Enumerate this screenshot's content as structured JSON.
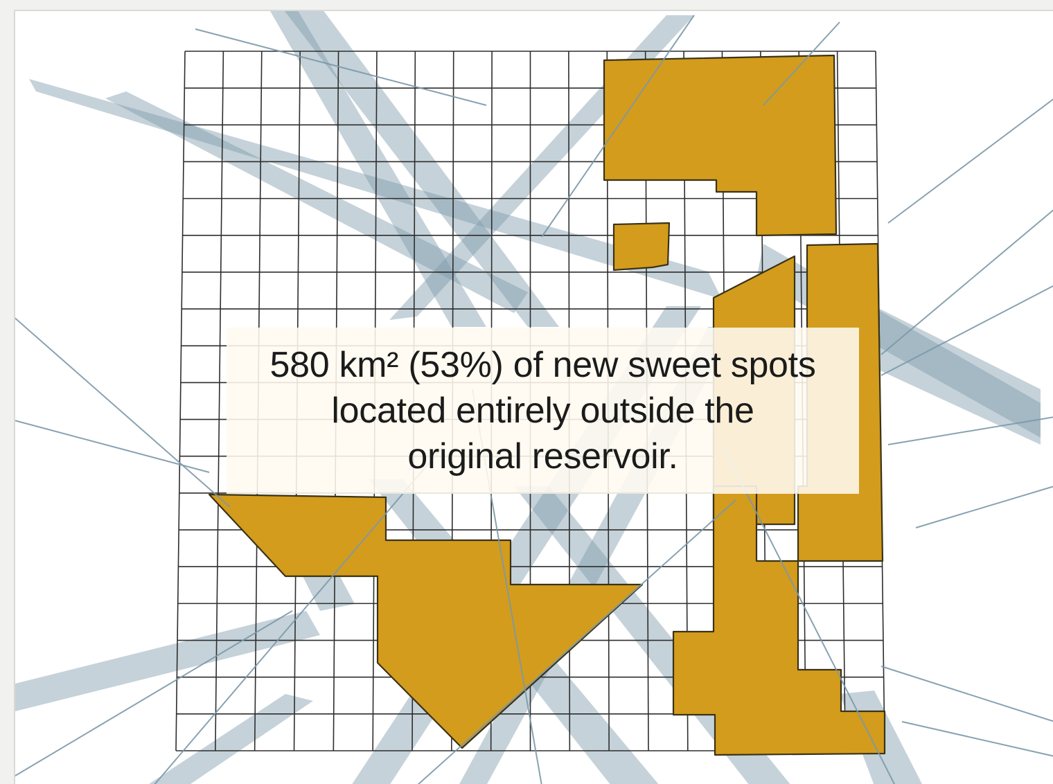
{
  "callout": {
    "line1": "580 km² (53%) of new sweet spots",
    "line2": "located entirely outside the",
    "line3": "original reservoir."
  },
  "colors": {
    "sweet_spot_fill": "#d39c1c",
    "sweet_spot_stroke": "#3a3218",
    "fault_band": "#7f9bab",
    "fault_line": "#7b98a8",
    "grid_line": "#2d2d2d",
    "background": "#ffffff"
  },
  "icons": []
}
